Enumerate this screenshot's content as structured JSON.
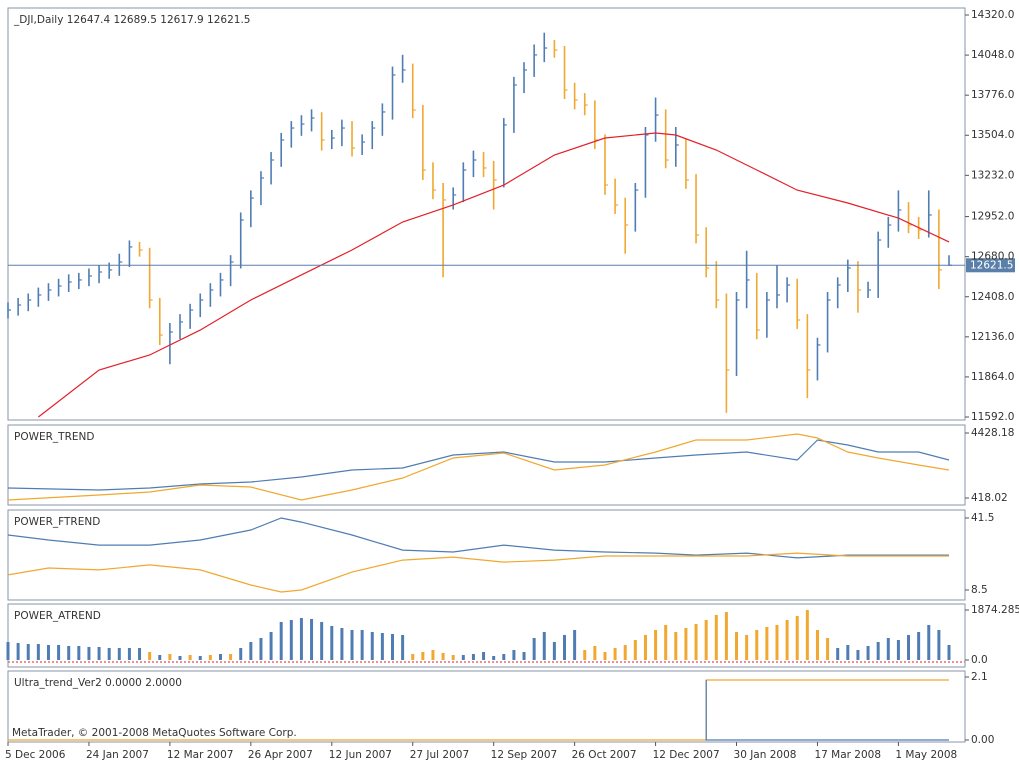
{
  "chart_data": [
    {
      "type": "ohlc",
      "title": "_DJI,Daily  12647.4 12689.5 12617.9 12621.5",
      "up_color": "#4f7db3",
      "down_color": "#f0a830",
      "xlim": [
        0,
        93
      ],
      "xticks": [
        {
          "value": 0,
          "label": "5 Dec 2006"
        },
        {
          "value": 8,
          "label": "24 Jan 2007"
        },
        {
          "value": 16,
          "label": "12 Mar 2007"
        },
        {
          "value": 24,
          "label": "26 Apr 2007"
        },
        {
          "value": 32,
          "label": "12 Jun 2007"
        },
        {
          "value": 40,
          "label": "27 Jul 2007"
        },
        {
          "value": 48,
          "label": "12 Sep 2007"
        },
        {
          "value": 56,
          "label": "26 Oct 2007"
        },
        {
          "value": 64,
          "label": "12 Dec 2007"
        },
        {
          "value": 72,
          "label": "30 Jan 2008"
        },
        {
          "value": 80,
          "label": "17 Mar 2008"
        },
        {
          "value": 88,
          "label": "1 May 2008"
        }
      ],
      "ylim": [
        11592,
        14320
      ],
      "yticks": [
        {
          "value": 14320,
          "label": "14320.0"
        },
        {
          "value": 14048,
          "label": "14048.0"
        },
        {
          "value": 13776,
          "label": "13776.0"
        },
        {
          "value": 13504,
          "label": "13504.0"
        },
        {
          "value": 13232,
          "label": "13232.0"
        },
        {
          "value": 12952,
          "label": "12952.0"
        },
        {
          "value": 12680,
          "label": "12680.0"
        },
        {
          "value": 12408,
          "label": "12408.0"
        },
        {
          "value": 12136,
          "label": "12136.0"
        },
        {
          "value": 11864,
          "label": "11864.0"
        },
        {
          "value": 11592,
          "label": "11592.0"
        }
      ],
      "high": [
        12370,
        12400,
        12430,
        12470,
        12500,
        12530,
        12560,
        12570,
        12600,
        12620,
        12640,
        12700,
        12790,
        12780,
        12740,
        12400,
        12230,
        12290,
        12360,
        12430,
        12500,
        12570,
        12690,
        12980,
        13130,
        13260,
        13390,
        13520,
        13600,
        13640,
        13680,
        13660,
        13540,
        13610,
        13600,
        13510,
        13600,
        13720,
        13970,
        14050,
        13990,
        13710,
        13320,
        13180,
        13150,
        13320,
        13400,
        13390,
        13330,
        13620,
        13900,
        14000,
        14120,
        14200,
        14150,
        14110,
        13860,
        13790,
        13740,
        13510,
        13210,
        13080,
        13180,
        13560,
        13760,
        13680,
        13560,
        13480,
        13240,
        12880,
        12650,
        12430,
        12440,
        12720,
        12570,
        12440,
        12620,
        12540,
        12530,
        12290,
        12130,
        12440,
        12540,
        12660,
        12650,
        12510,
        12850,
        12950,
        13130,
        13050,
        12950,
        13130,
        13000,
        12689.5
      ],
      "low": [
        12260,
        12280,
        12310,
        12340,
        12380,
        12410,
        12440,
        12460,
        12480,
        12500,
        12530,
        12550,
        12610,
        12680,
        12330,
        12080,
        11950,
        12120,
        12190,
        12270,
        12340,
        12410,
        12480,
        12600,
        12880,
        13030,
        13170,
        13290,
        13420,
        13500,
        13530,
        13400,
        13410,
        13430,
        13360,
        13370,
        13410,
        13500,
        13610,
        13860,
        13620,
        13200,
        13070,
        12540,
        13000,
        13050,
        13220,
        13220,
        13000,
        13150,
        13520,
        13790,
        13900,
        14000,
        14030,
        13750,
        13680,
        13640,
        13410,
        13100,
        12970,
        12700,
        12850,
        13080,
        13460,
        13280,
        13290,
        13140,
        12770,
        12540,
        12330,
        11620,
        11870,
        12330,
        12120,
        12130,
        12330,
        12370,
        12190,
        11720,
        11840,
        12030,
        12330,
        12440,
        12300,
        12400,
        12400,
        12740,
        12850,
        12840,
        12800,
        12810,
        12460,
        12617.9
      ],
      "close": [
        12318,
        12352,
        12386,
        12420,
        12454,
        12481,
        12508,
        12522,
        12549,
        12576,
        12590,
        12644,
        12746,
        12725,
        12386,
        12148,
        12169,
        12237,
        12318,
        12386,
        12454,
        12522,
        12644,
        12929,
        13078,
        13214,
        13336,
        13472,
        13553,
        13580,
        13621,
        13472,
        13485,
        13553,
        13417,
        13458,
        13553,
        13662,
        13913,
        13947,
        13675,
        13268,
        13132,
        13065,
        13099,
        13268,
        13336,
        13282,
        13200,
        13574,
        13845,
        13947,
        14049,
        14096,
        14082,
        13811,
        13743,
        13709,
        13472,
        13166,
        13031,
        12895,
        13132,
        13506,
        13641,
        13336,
        13438,
        13200,
        12827,
        12603,
        12386,
        11911,
        12386,
        12522,
        12182,
        12386,
        12420,
        12488,
        12250,
        11911,
        12081,
        12386,
        12488,
        12603,
        12454,
        12454,
        12793,
        12895,
        12997,
        12895,
        12861,
        12963,
        12590,
        12621.5
      ],
      "ma": {
        "color": "#e3202a",
        "x": [
          3,
          9,
          14,
          19,
          24,
          29,
          34,
          39,
          44,
          49,
          54,
          59,
          64,
          66,
          70,
          74,
          78,
          83,
          88,
          93
        ],
        "values": [
          11592,
          11911,
          12013,
          12182,
          12386,
          12556,
          12725,
          12915,
          13031,
          13166,
          13370,
          13485,
          13519,
          13506,
          13404,
          13268,
          13132,
          13044,
          12942,
          12780
        ]
      },
      "last_price": 12621.5,
      "last_price_color": "#5a7fa8"
    },
    {
      "type": "line",
      "title": "POWER_TREND",
      "ylim": [
        418.02,
        4428.18
      ],
      "yticks": [
        4428.18,
        418.02
      ],
      "series": [
        {
          "color": "#4f7db3",
          "x": [
            0,
            9,
            14,
            19,
            24,
            29,
            34,
            39,
            44,
            49,
            54,
            59,
            64,
            68,
            73,
            78,
            80,
            83,
            86,
            90,
            93
          ],
          "values": [
            1035,
            912,
            1035,
            1282,
            1405,
            1714,
            2146,
            2269,
            3071,
            3256,
            2639,
            2639,
            2886,
            3071,
            3256,
            2763,
            3997,
            3688,
            3256,
            3256,
            2763
          ]
        },
        {
          "color": "#f0a830",
          "x": [
            0,
            9,
            14,
            19,
            24,
            29,
            34,
            39,
            44,
            49,
            54,
            59,
            64,
            68,
            73,
            78,
            80,
            83,
            86,
            90,
            93
          ],
          "values": [
            295,
            603,
            788,
            1220,
            1097,
            295,
            912,
            1652,
            2886,
            3194,
            2146,
            2454,
            3256,
            3997,
            3997,
            4367,
            4120,
            3256,
            2886,
            2454,
            2146
          ]
        }
      ]
    },
    {
      "type": "line",
      "title": "POWER_FTREND",
      "ylim": [
        8.5,
        41.5
      ],
      "yticks": [
        41.5,
        8.5
      ],
      "series": [
        {
          "color": "#4f7db3",
          "x": [
            0,
            4,
            9,
            14,
            19,
            24,
            27,
            29,
            34,
            39,
            44,
            49,
            54,
            59,
            64,
            68,
            73,
            78,
            83,
            88,
            93
          ],
          "values": [
            33.7,
            31.4,
            29.1,
            29.1,
            31.4,
            36.0,
            41.5,
            39.6,
            33.7,
            26.8,
            25.9,
            29.1,
            26.8,
            25.9,
            25.4,
            24.5,
            25.4,
            23.2,
            24.5,
            24.5,
            24.5
          ]
        },
        {
          "color": "#f0a830",
          "x": [
            0,
            4,
            9,
            14,
            19,
            24,
            27,
            29,
            34,
            39,
            44,
            49,
            54,
            59,
            64,
            68,
            73,
            78,
            83,
            88,
            93
          ],
          "values": [
            15.4,
            18.6,
            17.7,
            20.0,
            17.7,
            10.8,
            7.6,
            8.5,
            16.7,
            22.2,
            23.6,
            21.3,
            22.2,
            24.1,
            24.1,
            24.1,
            24.1,
            25.4,
            24.1,
            24.1,
            24.1
          ]
        }
      ]
    },
    {
      "type": "bar",
      "title": "POWER_ATREND",
      "ylim": [
        0,
        1874.285
      ],
      "yticks": [
        1874.285,
        {
          "value": 0,
          "label": "0.0"
        }
      ],
      "series": [
        {
          "color": "#4f7db3",
          "values": [
            675,
            638,
            600,
            600,
            563,
            563,
            525,
            525,
            488,
            488,
            450,
            450,
            450,
            450,
            null,
            188,
            null,
            150,
            null,
            150,
            null,
            225,
            null,
            450,
            675,
            825,
            1050,
            1425,
            1500,
            1575,
            1538,
            1425,
            1275,
            1200,
            1125,
            1125,
            1050,
            1013,
            975,
            938,
            null,
            null,
            null,
            null,
            null,
            188,
            225,
            300,
            150,
            225,
            375,
            300,
            825,
            1050,
            675,
            938,
            1125,
            null,
            null,
            null,
            null,
            null,
            null,
            null,
            null,
            null,
            null,
            null,
            null,
            null,
            null,
            null,
            null,
            null,
            null,
            null,
            null,
            null,
            null,
            null,
            null,
            null,
            450,
            563,
            375,
            525,
            675,
            825,
            750,
            938,
            1050,
            1313,
            1125,
            563
          ]
        },
        {
          "color": "#f0a830",
          "values": [
            null,
            null,
            null,
            null,
            null,
            null,
            null,
            null,
            null,
            null,
            null,
            null,
            null,
            null,
            300,
            null,
            225,
            null,
            188,
            null,
            188,
            null,
            225,
            null,
            null,
            null,
            null,
            null,
            null,
            null,
            null,
            null,
            null,
            null,
            null,
            null,
            null,
            null,
            null,
            null,
            225,
            300,
            375,
            263,
            188,
            null,
            null,
            null,
            null,
            null,
            null,
            null,
            null,
            null,
            null,
            null,
            null,
            375,
            525,
            300,
            450,
            563,
            750,
            938,
            1125,
            1313,
            1050,
            1200,
            1350,
            1500,
            1688,
            1800,
            1050,
            938,
            1125,
            1238,
            1313,
            1500,
            1650,
            1874.285,
            1125,
            825,
            null,
            null,
            null,
            null,
            null,
            null,
            null,
            null,
            null,
            null,
            null,
            null
          ]
        }
      ]
    },
    {
      "type": "line",
      "title": "Ultra_trend_Ver2 0.0000 2.0000",
      "ylim": [
        0,
        2.1
      ],
      "yticks": [
        2.1,
        {
          "value": 0,
          "label": "0.00"
        }
      ],
      "series": [
        {
          "color": "#f0a830",
          "x": [
            0,
            69,
            69,
            93
          ],
          "values": [
            0,
            0,
            2,
            2
          ]
        },
        {
          "color": "#4f7db3",
          "x": [
            69,
            69,
            93
          ],
          "values": [
            2,
            0,
            0
          ]
        }
      ],
      "annotation": "MetaTrader, © 2001-2008 MetaQuotes Software Corp."
    }
  ]
}
